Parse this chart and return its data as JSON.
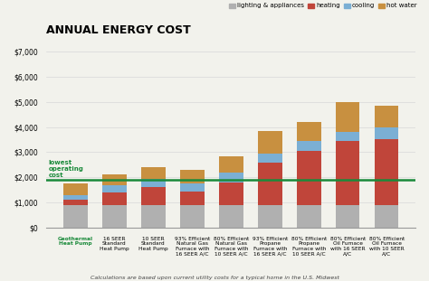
{
  "title": "ANNUAL ENERGY COST",
  "subtitle": "Calculations are based upon current utility costs for a typical home in the U.S. Midwest",
  "categories": [
    "Geothermal\nHeat Pump",
    "16 SEER\nStandard\nHeat Pump",
    "10 SEER\nStandard\nHeat Pump",
    "93% Efficient\nNatural Gas\nFurnace with\n16 SEER A/C",
    "80% Efficient\nNatural Gas\nFurnace with\n10 SEER A/C",
    "93% Efficient\nPropane\nFurnace with\n16 SEER A/C",
    "80% Efficient\nPropane\nFurnace with\n10 SEER A/C",
    "80% Efficient\nOil Furnace\nwith 16 SEER\nA/C",
    "80% Efficient\nOil Furnace\nwith 10 SEER\nA/C"
  ],
  "lighting_appliances": [
    900,
    900,
    900,
    900,
    900,
    900,
    900,
    900,
    900
  ],
  "heating": [
    200,
    500,
    700,
    550,
    900,
    1700,
    2150,
    2550,
    2600
  ],
  "cooling": [
    200,
    300,
    350,
    300,
    400,
    350,
    400,
    350,
    500
  ],
  "hot_water": [
    450,
    400,
    450,
    550,
    650,
    900,
    750,
    1200,
    850
  ],
  "colors": {
    "lighting_appliances": "#b0b0b0",
    "heating": "#c0453a",
    "cooling": "#7bafd4",
    "hot_water": "#c89040"
  },
  "ylim": [
    0,
    7000
  ],
  "yticks": [
    0,
    1000,
    2000,
    3000,
    4000,
    5000,
    6000,
    7000
  ],
  "ytick_labels": [
    "$0",
    "$1,000",
    "$2,000",
    "$3,000",
    "$4,000",
    "$5,000",
    "$6,000",
    "$7,000"
  ],
  "hline_y": 1900,
  "hline_color": "#1a8a3a",
  "hline_label": "lowest\noperating\ncost",
  "first_label_color": "#1a8a3a",
  "background_color": "#f2f2ec",
  "grid_color": "#d8d8d8",
  "title_fontsize": 9,
  "label_fontsize": 4.2,
  "legend_fontsize": 5.0,
  "ytick_fontsize": 5.5
}
